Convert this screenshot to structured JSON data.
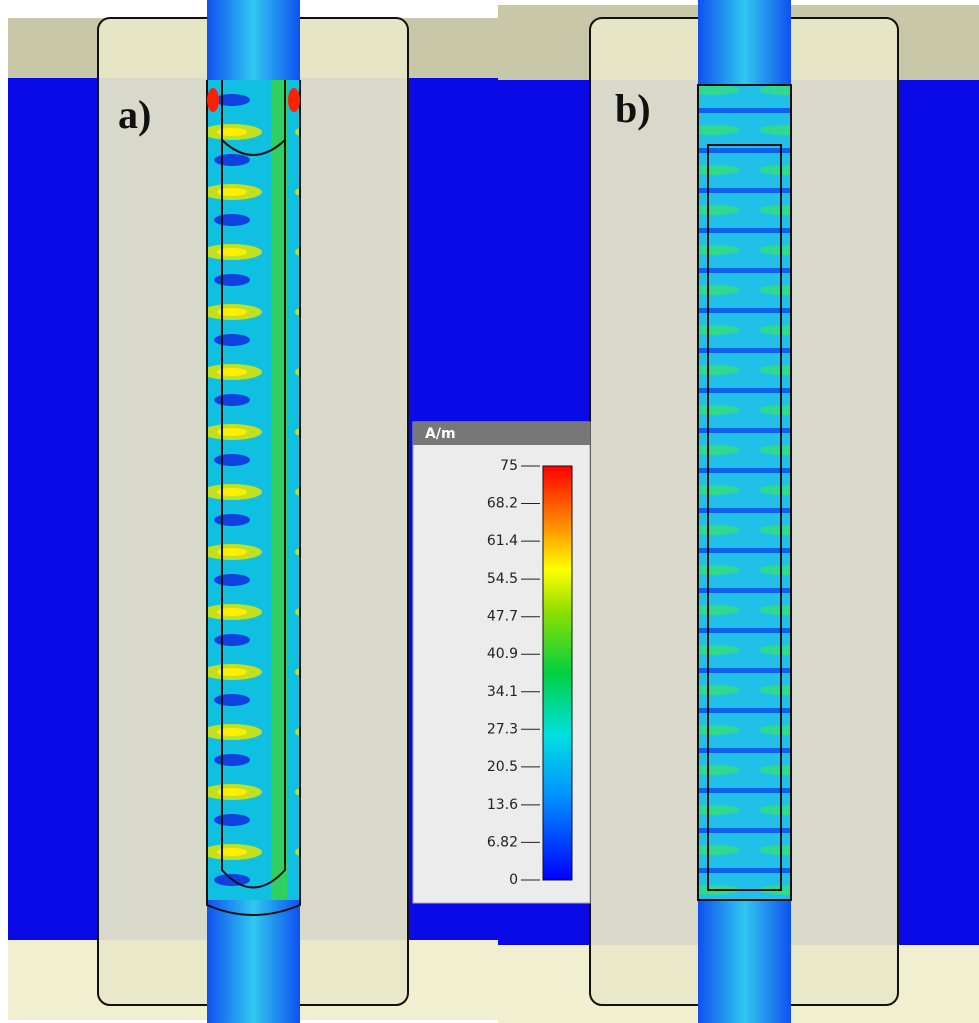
{
  "panels": [
    {
      "label": "a)"
    },
    {
      "label": "b)"
    }
  ],
  "colorbar": {
    "unit": "A/m",
    "ticks": [
      75,
      68.2,
      61.4,
      54.5,
      47.7,
      40.9,
      34.1,
      27.3,
      20.5,
      13.6,
      6.82,
      0
    ]
  }
}
